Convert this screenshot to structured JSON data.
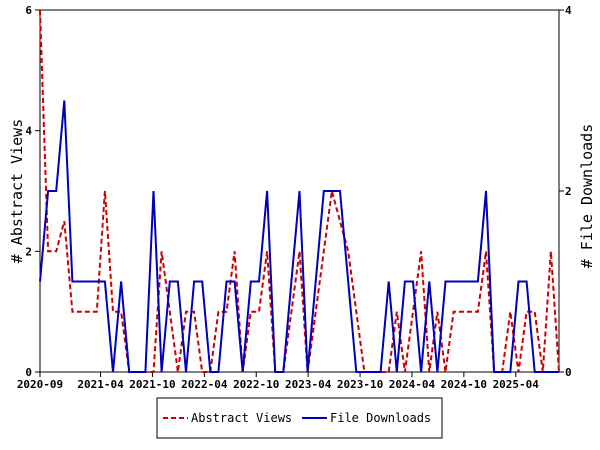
{
  "chart_data": {
    "type": "line",
    "title": "",
    "ylabel_left": "# Abstract Views",
    "ylabel_right": "# File Downloads",
    "ylim_left": [
      0,
      6
    ],
    "ylim_right": [
      0,
      4
    ],
    "yticks_left": [
      "0",
      "2",
      "4",
      "6"
    ],
    "yticks_right": [
      "0",
      "2",
      "4"
    ],
    "x_start": "2020-09",
    "x_end": "2025-09",
    "xtick_labels": [
      "2020-09",
      "2021-04",
      "2021-10",
      "2022-04",
      "2022-10",
      "2023-04",
      "2023-10",
      "2024-04",
      "2024-10",
      "2025-04"
    ],
    "grid": false,
    "legend_position": "bottom",
    "series": [
      {
        "name": "Abstract Views",
        "axis": "left",
        "color": "#cc0000",
        "style": "dashed",
        "values": [
          6,
          2,
          2,
          2.5,
          1,
          1,
          1,
          1,
          3,
          1,
          1,
          0,
          0,
          0,
          0,
          2,
          1,
          0,
          1,
          1,
          0,
          0,
          1,
          1,
          2,
          0,
          1,
          1,
          2,
          0,
          0,
          1,
          2,
          0,
          1,
          2,
          3,
          2.5,
          2,
          1,
          0,
          0,
          0,
          0,
          1,
          0,
          1,
          2,
          0,
          1,
          0,
          1,
          1,
          1,
          1,
          2,
          0,
          0,
          1,
          0,
          1,
          1,
          0,
          2,
          0
        ]
      },
      {
        "name": "File Downloads",
        "axis": "right",
        "color": "#0000bb",
        "style": "solid",
        "values": [
          1,
          2,
          2,
          3,
          1,
          1,
          1,
          1,
          1,
          0,
          1,
          0,
          0,
          0,
          2,
          0,
          1,
          1,
          0,
          1,
          1,
          0,
          0,
          1,
          1,
          0,
          1,
          1,
          2,
          0,
          0,
          1,
          2,
          0,
          1,
          2,
          2,
          2,
          1,
          0,
          0,
          0,
          0,
          1,
          0,
          1,
          1,
          0,
          1,
          0,
          1,
          1,
          1,
          1,
          1,
          2,
          0,
          0,
          0,
          1,
          1,
          0,
          0,
          0,
          0
        ]
      }
    ]
  }
}
